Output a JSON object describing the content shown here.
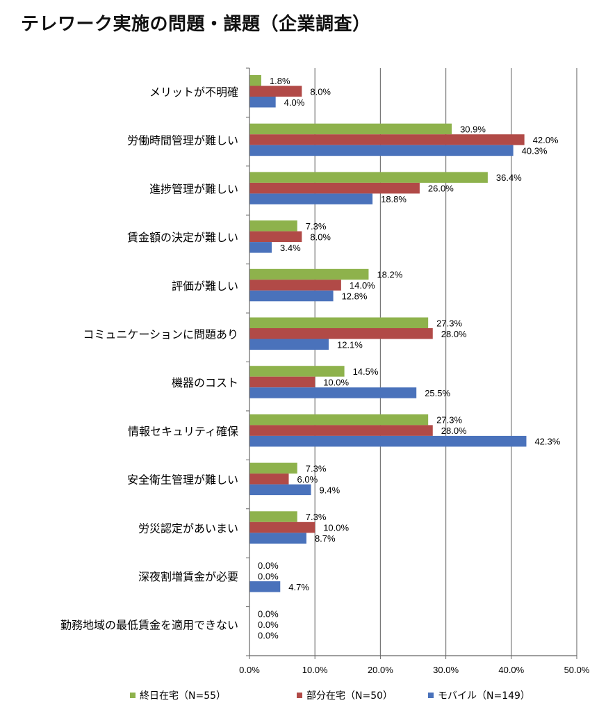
{
  "chart_data": {
    "type": "bar",
    "orientation": "horizontal",
    "title": "テレワーク実施の問題・課題（企業調査）",
    "categories": [
      "メリットが不明確",
      "労働時間管理が難しい",
      "進捗管理が難しい",
      "賃金額の決定が難しい",
      "評価が難しい",
      "コミュニケーションに問題あり",
      "機器のコスト",
      "情報セキュリティ確保",
      "安全衛生管理が難しい",
      "労災認定があいまい",
      "深夜割増賃金が必要",
      "勤務地域の最低賃金を適用できない"
    ],
    "series": [
      {
        "name": "終日在宅（N=55）",
        "color": "#8eb24c",
        "values": [
          1.8,
          30.9,
          36.4,
          7.3,
          18.2,
          27.3,
          14.5,
          27.3,
          7.3,
          7.3,
          0.0,
          0.0
        ],
        "labels": [
          "1.8%",
          "30.9%",
          "36.4%",
          "7.3%",
          "18.2%",
          "27.3%",
          "14.5%",
          "27.3%",
          "7.3%",
          "7.3%",
          "0.0%",
          "0.0%"
        ]
      },
      {
        "name": "部分在宅（N=50）",
        "color": "#b14a47",
        "values": [
          8.0,
          42.0,
          26.0,
          8.0,
          14.0,
          28.0,
          10.0,
          28.0,
          6.0,
          10.0,
          0.0,
          0.0
        ],
        "labels": [
          "8.0%",
          "42.0%",
          "26.0%",
          "8.0%",
          "14.0%",
          "28.0%",
          "10.0%",
          "28.0%",
          "6.0%",
          "10.0%",
          "0.0%",
          "0.0%"
        ]
      },
      {
        "name": "モバイル（N=149）",
        "color": "#4a72bb",
        "values": [
          4.0,
          40.3,
          18.8,
          3.4,
          12.8,
          12.1,
          25.5,
          42.3,
          9.4,
          8.7,
          4.7,
          0.0
        ],
        "labels": [
          "4.0%",
          "40.3%",
          "18.8%",
          "3.4%",
          "12.8%",
          "12.1%",
          "25.5%",
          "42.3%",
          "9.4%",
          "8.7%",
          "4.7%",
          "0.0%"
        ]
      }
    ],
    "xlim": [
      0,
      50
    ],
    "xticks": [
      0,
      10,
      20,
      30,
      40,
      50
    ],
    "xtick_labels": [
      "0.0%",
      "10.0%",
      "20.0%",
      "30.0%",
      "40.0%",
      "50.0%"
    ],
    "grid": "vertical",
    "legend_position": "bottom",
    "xlabel": "",
    "ylabel": ""
  }
}
